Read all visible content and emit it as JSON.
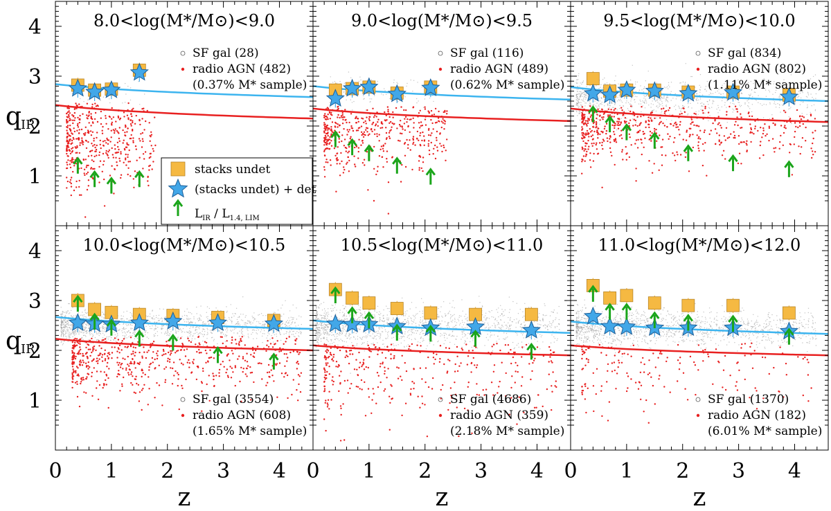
{
  "chart_data": {
    "type": "scatter",
    "figure_ylabel": "q",
    "figure_ylabel_sub": "IR",
    "figure_xlabel": "z",
    "xlim": [
      0,
      4.6
    ],
    "ylim": [
      0,
      4.5
    ],
    "xticks": [
      0,
      1,
      2,
      3,
      4
    ],
    "yticks": [
      1,
      2,
      3,
      4
    ],
    "colors": {
      "sf_curve": "#3cb4ef",
      "agn_curve": "#e82020",
      "agn_points": "#e82020",
      "sf_points": "#9a9a9a",
      "stack_square": "#f5b942",
      "star": "#42a7e8",
      "arrow": "#1aa51a"
    },
    "legend_box": {
      "location": "inside panel 1, right side",
      "entries": [
        {
          "marker": "square",
          "label": "stacks undet"
        },
        {
          "marker": "star",
          "label": "(stacks undet) + det"
        },
        {
          "marker": "arrow",
          "label_main": "L",
          "label_sub": "IR",
          "label_mid": " / L",
          "label_sub2": "1.4, LIM"
        }
      ]
    },
    "panels": [
      {
        "title": "8.0<log(M*/M⊙)<9.0",
        "legend": {
          "sf": "SF gal (28)",
          "agn": "radio AGN (482)",
          "frac": "(0.37% M* sample)",
          "position": "top"
        },
        "sf_count": 28,
        "agn_count": 482,
        "agn_cloud": {
          "z_range": [
            0.2,
            1.8
          ],
          "q_center": 1.7,
          "q_spread": 0.45
        },
        "sf_cloud": {
          "z_range": [
            0.3,
            1.6
          ],
          "q_center": 2.7,
          "q_spread": 0.15
        },
        "sf_curve": [
          [
            0,
            2.84
          ],
          [
            4.6,
            2.58
          ]
        ],
        "agn_curve": [
          [
            0,
            2.42
          ],
          [
            4.6,
            2.15
          ]
        ],
        "squares": [
          [
            0.4,
            2.82
          ],
          [
            0.7,
            2.72
          ],
          [
            1.0,
            2.74
          ],
          [
            1.5,
            3.12
          ]
        ],
        "stars": [
          [
            0.4,
            2.75
          ],
          [
            0.7,
            2.68
          ],
          [
            1.0,
            2.72
          ],
          [
            1.5,
            3.07
          ]
        ],
        "arrows": [
          [
            0.4,
            1.35
          ],
          [
            0.7,
            1.08
          ],
          [
            1.0,
            0.95
          ],
          [
            1.5,
            1.08
          ]
        ]
      },
      {
        "title": "9.0<log(M*/M⊙)<9.5",
        "legend": {
          "sf": "SF gal (116)",
          "agn": "radio AGN (489)",
          "frac": "(0.62% M* sample)",
          "position": "top"
        },
        "sf_count": 116,
        "agn_count": 489,
        "agn_cloud": {
          "z_range": [
            0.2,
            2.4
          ],
          "q_center": 1.85,
          "q_spread": 0.4
        },
        "sf_cloud": {
          "z_range": [
            0.3,
            2.3
          ],
          "q_center": 2.7,
          "q_spread": 0.15
        },
        "sf_curve": [
          [
            0,
            2.8
          ],
          [
            4.6,
            2.53
          ]
        ],
        "agn_curve": [
          [
            0,
            2.35
          ],
          [
            4.6,
            2.1
          ]
        ],
        "squares": [
          [
            0.4,
            2.72
          ],
          [
            0.7,
            2.75
          ],
          [
            1.0,
            2.78
          ],
          [
            1.5,
            2.66
          ],
          [
            2.1,
            2.78
          ]
        ],
        "stars": [
          [
            0.4,
            2.55
          ],
          [
            0.7,
            2.75
          ],
          [
            1.0,
            2.78
          ],
          [
            1.5,
            2.64
          ],
          [
            2.1,
            2.76
          ]
        ],
        "arrows": [
          [
            0.4,
            1.88
          ],
          [
            0.7,
            1.72
          ],
          [
            1.0,
            1.6
          ],
          [
            1.5,
            1.35
          ],
          [
            2.1,
            1.13
          ]
        ]
      },
      {
        "title": "9.5<log(M*/M⊙)<10.0",
        "legend": {
          "sf": "SF gal (834)",
          "agn": "radio AGN (802)",
          "frac": "(1.11% M* sample)",
          "position": "top"
        },
        "sf_count": 834,
        "agn_count": 802,
        "agn_cloud": {
          "z_range": [
            0.2,
            4.4
          ],
          "q_center": 1.95,
          "q_spread": 0.35
        },
        "sf_cloud": {
          "z_range": [
            0.1,
            4.4
          ],
          "q_center": 2.55,
          "q_spread": 0.2
        },
        "sf_curve": [
          [
            0,
            2.78
          ],
          [
            4.6,
            2.5
          ]
        ],
        "agn_curve": [
          [
            0,
            2.35
          ],
          [
            4.6,
            2.08
          ]
        ],
        "squares": [
          [
            0.4,
            2.95
          ],
          [
            0.7,
            2.7
          ],
          [
            1.0,
            2.72
          ],
          [
            1.5,
            2.72
          ],
          [
            2.1,
            2.68
          ],
          [
            2.9,
            2.68
          ],
          [
            3.9,
            2.62
          ]
        ],
        "stars": [
          [
            0.4,
            2.65
          ],
          [
            0.7,
            2.62
          ],
          [
            1.0,
            2.72
          ],
          [
            1.5,
            2.7
          ],
          [
            2.1,
            2.65
          ],
          [
            2.9,
            2.67
          ],
          [
            3.9,
            2.58
          ]
        ],
        "arrows": [
          [
            0.4,
            2.38
          ],
          [
            0.7,
            2.18
          ],
          [
            1.0,
            2.02
          ],
          [
            1.5,
            1.85
          ],
          [
            2.1,
            1.6
          ],
          [
            2.9,
            1.4
          ],
          [
            3.9,
            1.28
          ]
        ]
      },
      {
        "title": "10.0<log(M*/M⊙)<10.5",
        "legend": {
          "sf": "SF gal (3554)",
          "agn": "radio AGN (608)",
          "frac": "(1.65% M* sample)",
          "position": "bottom"
        },
        "sf_count": 3554,
        "agn_count": 608,
        "agn_cloud": {
          "z_range": [
            0.3,
            4.4
          ],
          "q_center": 1.8,
          "q_spread": 0.35
        },
        "sf_cloud": {
          "z_range": [
            0.1,
            4.4
          ],
          "q_center": 2.5,
          "q_spread": 0.15
        },
        "sf_curve": [
          [
            0,
            2.67
          ],
          [
            4.6,
            2.43
          ]
        ],
        "agn_curve": [
          [
            0,
            2.23
          ],
          [
            4.6,
            2.0
          ]
        ],
        "squares": [
          [
            0.4,
            3.0
          ],
          [
            0.7,
            2.82
          ],
          [
            1.0,
            2.76
          ],
          [
            1.5,
            2.72
          ],
          [
            2.1,
            2.7
          ],
          [
            2.9,
            2.66
          ],
          [
            3.9,
            2.6
          ]
        ],
        "stars": [
          [
            0.4,
            2.55
          ],
          [
            0.7,
            2.53
          ],
          [
            1.0,
            2.52
          ],
          [
            1.5,
            2.55
          ],
          [
            2.1,
            2.58
          ],
          [
            2.9,
            2.55
          ],
          [
            3.9,
            2.53
          ]
        ],
        "arrows": [
          [
            0.4,
            3.08
          ],
          [
            0.7,
            2.72
          ],
          [
            1.0,
            2.6
          ],
          [
            1.5,
            2.38
          ],
          [
            2.1,
            2.3
          ],
          [
            2.9,
            2.05
          ],
          [
            3.9,
            1.92
          ]
        ]
      },
      {
        "title": "10.5<log(M*/M⊙)<11.0",
        "legend": {
          "sf": "SF gal (4686)",
          "agn": "radio AGN (359)",
          "frac": "(2.18% M* sample)",
          "position": "bottom"
        },
        "sf_count": 4686,
        "agn_count": 359,
        "agn_cloud": {
          "z_range": [
            0.2,
            4.4
          ],
          "q_center": 1.6,
          "q_spread": 0.5
        },
        "sf_cloud": {
          "z_range": [
            0.05,
            4.4
          ],
          "q_center": 2.5,
          "q_spread": 0.2
        },
        "sf_curve": [
          [
            0,
            2.6
          ],
          [
            4.6,
            2.35
          ]
        ],
        "agn_curve": [
          [
            0,
            2.1
          ],
          [
            4.6,
            1.9
          ]
        ],
        "squares": [
          [
            0.4,
            3.22
          ],
          [
            0.7,
            3.05
          ],
          [
            1.0,
            2.95
          ],
          [
            1.5,
            2.84
          ],
          [
            2.1,
            2.75
          ],
          [
            2.9,
            2.72
          ],
          [
            3.9,
            2.72
          ]
        ],
        "stars": [
          [
            0.4,
            2.53
          ],
          [
            0.7,
            2.52
          ],
          [
            1.0,
            2.52
          ],
          [
            1.5,
            2.48
          ],
          [
            2.1,
            2.45
          ],
          [
            2.9,
            2.47
          ],
          [
            3.9,
            2.4
          ]
        ],
        "arrows": [
          [
            0.4,
            3.25
          ],
          [
            0.7,
            2.85
          ],
          [
            1.0,
            2.75
          ],
          [
            1.5,
            2.5
          ],
          [
            2.1,
            2.48
          ],
          [
            2.9,
            2.38
          ],
          [
            3.9,
            2.12
          ]
        ]
      },
      {
        "title": "11.0<log(M*/M⊙)<12.0",
        "legend": {
          "sf": "SF gal (1370)",
          "agn": "radio AGN (182)",
          "frac": "(6.01% M* sample)",
          "position": "bottom"
        },
        "sf_count": 1370,
        "agn_count": 182,
        "agn_cloud": {
          "z_range": [
            0.2,
            4.3
          ],
          "q_center": 1.6,
          "q_spread": 0.45
        },
        "sf_cloud": {
          "z_range": [
            0.1,
            4.4
          ],
          "q_center": 2.45,
          "q_spread": 0.17
        },
        "sf_curve": [
          [
            0,
            2.58
          ],
          [
            4.6,
            2.33
          ]
        ],
        "agn_curve": [
          [
            0,
            2.1
          ],
          [
            4.6,
            1.9
          ]
        ],
        "squares": [
          [
            0.4,
            3.3
          ],
          [
            0.7,
            3.05
          ],
          [
            1.0,
            3.1
          ],
          [
            1.5,
            2.95
          ],
          [
            2.1,
            2.9
          ],
          [
            2.9,
            2.9
          ],
          [
            3.9,
            2.75
          ]
        ],
        "stars": [
          [
            0.4,
            2.68
          ],
          [
            0.7,
            2.48
          ],
          [
            1.0,
            2.47
          ],
          [
            1.5,
            2.45
          ],
          [
            2.1,
            2.45
          ],
          [
            2.9,
            2.45
          ],
          [
            3.9,
            2.38
          ]
        ],
        "arrows": [
          [
            0.4,
            3.28
          ],
          [
            0.7,
            2.92
          ],
          [
            1.0,
            2.92
          ],
          [
            1.5,
            2.75
          ],
          [
            2.1,
            2.7
          ],
          [
            2.9,
            2.68
          ],
          [
            3.9,
            2.42
          ]
        ]
      }
    ]
  }
}
